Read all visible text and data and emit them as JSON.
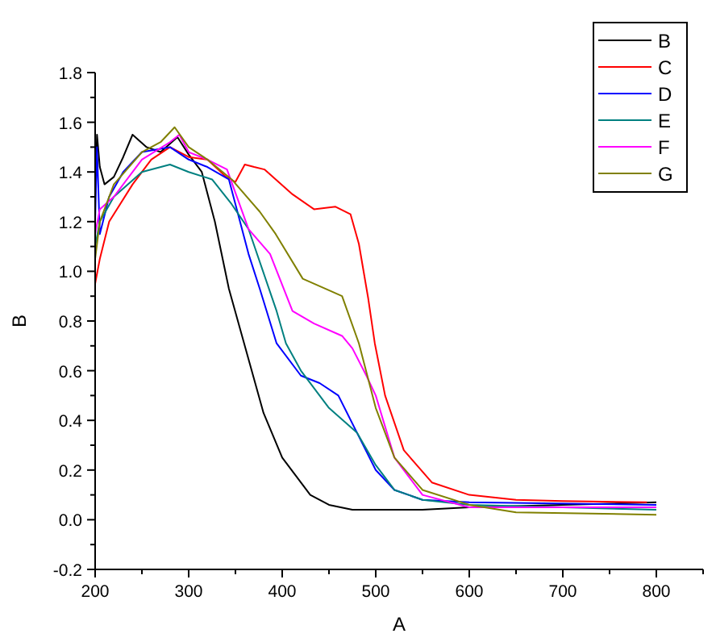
{
  "chart_data": {
    "type": "line",
    "xlabel": "A",
    "ylabel": "B",
    "xlim": [
      200,
      850
    ],
    "ylim": [
      -0.2,
      1.8
    ],
    "xticks": [
      200,
      {
        "value": 250,
        "label": null
      },
      300,
      {
        "value": 350,
        "label": null
      },
      400,
      {
        "value": 450,
        "label": null
      },
      500,
      {
        "value": 550,
        "label": null
      },
      600,
      {
        "value": 650,
        "label": null
      },
      700,
      {
        "value": 750,
        "label": null
      },
      800,
      {
        "value": 850,
        "label": null
      }
    ],
    "yticks": [
      -0.2,
      {
        "value": -0.1,
        "label": null
      },
      {
        "value": 0,
        "label": "0.0"
      },
      {
        "value": 0.1,
        "label": null
      },
      0.2,
      {
        "value": 0.3,
        "label": null
      },
      0.4,
      {
        "value": 0.5,
        "label": null
      },
      0.6,
      {
        "value": 0.7,
        "label": null
      },
      0.8,
      {
        "value": 0.9,
        "label": null
      },
      {
        "value": 1,
        "label": "1.0"
      },
      {
        "value": 1.1,
        "label": null
      },
      1.2,
      {
        "value": 1.3,
        "label": null
      },
      1.4,
      {
        "value": 1.5,
        "label": null
      },
      1.6,
      {
        "value": 1.7,
        "label": null
      },
      1.8
    ],
    "legend": "top right",
    "grid": false,
    "marker": "none",
    "line_style": "solid",
    "series": [
      {
        "name": "B",
        "color": "#000000",
        "x": [
          200,
          202,
          205,
          210,
          220,
          230,
          240,
          255,
          270,
          288,
          300,
          314,
          328,
          343,
          360,
          380,
          400,
          430,
          450,
          475,
          550,
          600,
          700,
          800
        ],
        "values": [
          1.3,
          1.55,
          1.42,
          1.35,
          1.38,
          1.46,
          1.55,
          1.5,
          1.48,
          1.54,
          1.47,
          1.4,
          1.2,
          0.93,
          0.7,
          0.43,
          0.25,
          0.1,
          0.06,
          0.04,
          0.04,
          0.05,
          0.06,
          0.07
        ]
      },
      {
        "name": "C",
        "color": "#ff0000",
        "x": [
          200,
          205,
          215,
          240,
          260,
          280,
          300,
          320,
          340,
          350,
          360,
          370,
          381,
          411,
          434,
          457,
          473,
          482,
          492,
          499,
          510,
          530,
          560,
          600,
          650,
          700,
          790
        ],
        "values": [
          0.95,
          1.05,
          1.2,
          1.35,
          1.45,
          1.5,
          1.46,
          1.45,
          1.38,
          1.36,
          1.43,
          1.42,
          1.41,
          1.31,
          1.25,
          1.26,
          1.23,
          1.11,
          0.89,
          0.71,
          0.5,
          0.28,
          0.15,
          0.1,
          0.08,
          0.075,
          0.07
        ]
      },
      {
        "name": "D",
        "color": "#0000ff",
        "x": [
          200,
          202,
          205,
          215,
          230,
          250,
          280,
          300,
          320,
          343,
          364,
          376,
          394,
          420,
          440,
          460,
          480,
          500,
          520,
          550,
          600,
          800
        ],
        "values": [
          1.2,
          1.5,
          1.15,
          1.3,
          1.4,
          1.48,
          1.5,
          1.45,
          1.42,
          1.37,
          1.07,
          0.93,
          0.71,
          0.58,
          0.55,
          0.5,
          0.35,
          0.2,
          0.12,
          0.08,
          0.07,
          0.06
        ]
      },
      {
        "name": "E",
        "color": "#008080",
        "x": [
          200,
          205,
          220,
          250,
          280,
          300,
          325,
          346,
          364,
          394,
          404,
          420,
          450,
          480,
          500,
          520,
          550,
          600,
          700,
          800
        ],
        "values": [
          1.1,
          1.2,
          1.3,
          1.4,
          1.43,
          1.4,
          1.37,
          1.27,
          1.17,
          0.84,
          0.71,
          0.6,
          0.45,
          0.35,
          0.22,
          0.12,
          0.08,
          0.06,
          0.05,
          0.04
        ]
      },
      {
        "name": "F",
        "color": "#ff00ff",
        "x": [
          200,
          205,
          220,
          250,
          280,
          290,
          300,
          320,
          341,
          364,
          387,
          411,
          434,
          464,
          475,
          490,
          500,
          520,
          550,
          600,
          800
        ],
        "values": [
          1.15,
          1.25,
          1.3,
          1.45,
          1.52,
          1.55,
          1.48,
          1.45,
          1.41,
          1.17,
          1.07,
          0.84,
          0.79,
          0.74,
          0.69,
          0.58,
          0.5,
          0.25,
          0.1,
          0.05,
          0.05
        ]
      },
      {
        "name": "G",
        "color": "#808000",
        "x": [
          200,
          205,
          220,
          250,
          270,
          285,
          300,
          320,
          346,
          376,
          393,
          422,
          446,
          464,
          482,
          500,
          520,
          550,
          600,
          650,
          800
        ],
        "values": [
          1.05,
          1.2,
          1.35,
          1.48,
          1.52,
          1.58,
          1.5,
          1.45,
          1.37,
          1.24,
          1.15,
          0.97,
          0.93,
          0.9,
          0.71,
          0.45,
          0.25,
          0.12,
          0.06,
          0.03,
          0.02
        ]
      }
    ]
  }
}
